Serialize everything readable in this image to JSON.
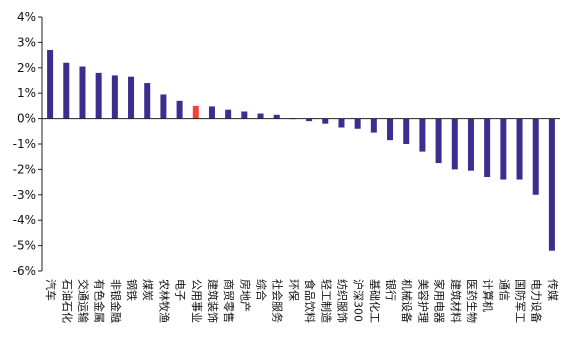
{
  "chart_data": {
    "type": "bar",
    "title": "",
    "xlabel": "",
    "ylabel": "",
    "ylim": [
      -6,
      4
    ],
    "yticks": [
      4,
      3,
      2,
      1,
      0,
      -1,
      -2,
      -3,
      -4,
      -5,
      -6
    ],
    "ytick_labels": [
      "4%",
      "3%",
      "2%",
      "1%",
      "0%",
      "-1%",
      "-2%",
      "-3%",
      "-4%",
      "-5%",
      "-6%"
    ],
    "grid": false,
    "legend": "none",
    "colors": {
      "default_bar": "#3a2f8f",
      "highlight_bar": "#ff3b3b",
      "axis": "#222222"
    },
    "categories": [
      "汽车",
      "石油石化",
      "交通运输",
      "有色金属",
      "非银金融",
      "钢铁",
      "煤炭",
      "农林牧渔",
      "电子",
      "公用事业",
      "建筑装饰",
      "商贸零售",
      "房地产",
      "综合",
      "社会服务",
      "环保",
      "食品饮料",
      "轻工制造",
      "纺织服饰",
      "沪深300",
      "基础化工",
      "银行",
      "机械设备",
      "美容护理",
      "家用电器",
      "建筑材料",
      "医药生物",
      "计算机",
      "通信",
      "国防军工",
      "电力设备",
      "传媒"
    ],
    "values": [
      2.7,
      2.2,
      2.05,
      1.8,
      1.7,
      1.65,
      1.4,
      0.95,
      0.7,
      0.5,
      0.48,
      0.35,
      0.28,
      0.2,
      0.15,
      0.02,
      -0.1,
      -0.2,
      -0.35,
      -0.4,
      -0.55,
      -0.85,
      -1.0,
      -1.3,
      -1.75,
      -2.0,
      -2.05,
      -2.3,
      -2.4,
      -2.4,
      -3.0,
      -5.2
    ],
    "highlight_index": 9
  }
}
